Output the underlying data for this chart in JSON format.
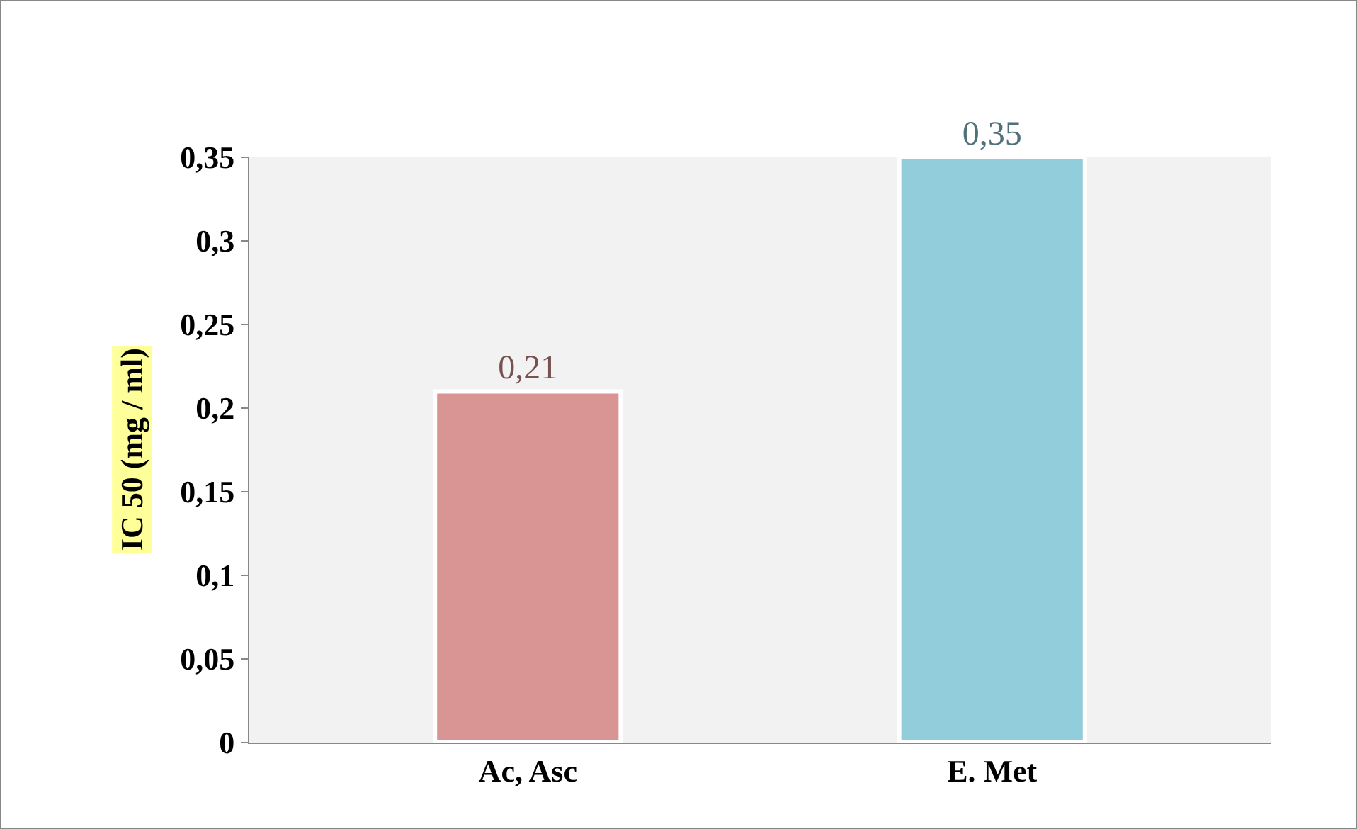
{
  "chart_data": {
    "type": "bar",
    "ylabel": "IC 50 (mg / ml)",
    "categories": [
      "Ac, Asc",
      "E. Met"
    ],
    "values": [
      0.21,
      0.35
    ],
    "colors": [
      "#d99594",
      "#92cddc"
    ],
    "value_labels": [
      "0,21",
      "0,35"
    ],
    "ylim": [
      0,
      0.35
    ],
    "yticks": [
      0,
      {
        "value": 0.05,
        "label": "0,05"
      },
      {
        "value": 0.1,
        "label": "0,1"
      },
      {
        "value": 0.15,
        "label": "0,15"
      },
      {
        "value": 0.2,
        "label": "0,2"
      },
      {
        "value": 0.25,
        "label": "0,25"
      },
      {
        "value": 0.3,
        "label": "0,3"
      },
      {
        "value": 0.35,
        "label": "0,35"
      }
    ],
    "grid": false
  }
}
